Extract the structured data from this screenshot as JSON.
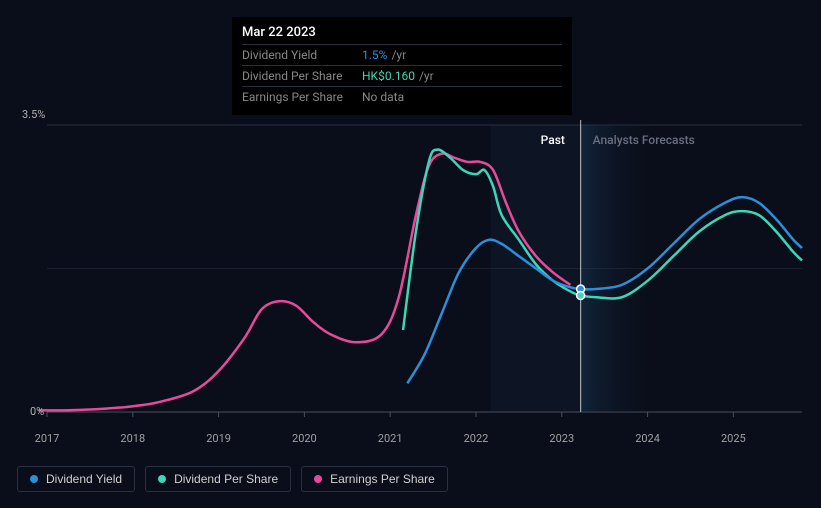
{
  "tooltip": {
    "date": "Mar 22 2023",
    "rows": [
      {
        "label": "Dividend Yield",
        "value": "1.5%",
        "suffix": "/yr",
        "color": "#2d8fd6"
      },
      {
        "label": "Dividend Per Share",
        "value": "HK$0.160",
        "suffix": "/yr",
        "color": "#3dd6b8"
      },
      {
        "label": "Earnings Per Share",
        "value": "No data",
        "suffix": "",
        "color": "#888888"
      }
    ]
  },
  "chart": {
    "type": "line",
    "background_color": "#0a0e1a",
    "axis_font_size": 11,
    "y": {
      "min": 0,
      "max": 3.5,
      "min_label": "0%",
      "max_label": "3.5%",
      "gridlines": [
        0,
        1.75
      ]
    },
    "x": {
      "min": 2017,
      "max": 2025.8,
      "ticks": [
        2017,
        2018,
        2019,
        2020,
        2021,
        2022,
        2023,
        2024,
        2025
      ],
      "labels": [
        "2017",
        "2018",
        "2019",
        "2020",
        "2021",
        "2022",
        "2023",
        "2024",
        "2025"
      ]
    },
    "past_forecast_split": 2023.22,
    "region_labels": {
      "past": {
        "text": "Past",
        "color": "#ffffff"
      },
      "forecast": {
        "text": "Analysts Forecasts",
        "color": "#6a7080"
      }
    },
    "forecast_gradient": {
      "from": "#1a3a5a",
      "to": "#0a0e1a",
      "opacity": 0.5
    },
    "cursor": {
      "x": 2023.22,
      "dots": [
        {
          "series": "dividend_yield",
          "y": 1.5,
          "color": "#2d8fd6"
        },
        {
          "series": "dividend_per_share",
          "y": 1.42,
          "color": "#3dd6b8"
        }
      ]
    },
    "series": [
      {
        "id": "earnings_per_share",
        "label": "Earnings Per Share",
        "color": "#e84a9a",
        "stroke_width": 2.5,
        "data": [
          [
            2016.9,
            0.02
          ],
          [
            2017.2,
            0.02
          ],
          [
            2017.5,
            0.03
          ],
          [
            2017.8,
            0.05
          ],
          [
            2018.0,
            0.07
          ],
          [
            2018.3,
            0.12
          ],
          [
            2018.7,
            0.25
          ],
          [
            2019.0,
            0.5
          ],
          [
            2019.3,
            0.9
          ],
          [
            2019.5,
            1.25
          ],
          [
            2019.7,
            1.35
          ],
          [
            2019.9,
            1.3
          ],
          [
            2020.1,
            1.1
          ],
          [
            2020.3,
            0.95
          ],
          [
            2020.6,
            0.85
          ],
          [
            2020.9,
            0.95
          ],
          [
            2021.1,
            1.4
          ],
          [
            2021.3,
            2.4
          ],
          [
            2021.45,
            3.0
          ],
          [
            2021.6,
            3.15
          ],
          [
            2021.75,
            3.1
          ],
          [
            2021.9,
            3.05
          ],
          [
            2022.05,
            3.05
          ],
          [
            2022.2,
            2.95
          ],
          [
            2022.35,
            2.55
          ],
          [
            2022.5,
            2.2
          ],
          [
            2022.7,
            1.9
          ],
          [
            2022.9,
            1.7
          ],
          [
            2023.1,
            1.55
          ]
        ]
      },
      {
        "id": "dividend_per_share",
        "label": "Dividend Per Share",
        "color": "#3dd6b8",
        "stroke_width": 2.5,
        "data": [
          [
            2021.15,
            1.0
          ],
          [
            2021.3,
            2.2
          ],
          [
            2021.45,
            3.05
          ],
          [
            2021.55,
            3.2
          ],
          [
            2021.7,
            3.1
          ],
          [
            2021.85,
            2.95
          ],
          [
            2022.0,
            2.9
          ],
          [
            2022.1,
            2.95
          ],
          [
            2022.2,
            2.75
          ],
          [
            2022.3,
            2.4
          ],
          [
            2022.5,
            2.1
          ],
          [
            2022.7,
            1.8
          ],
          [
            2022.9,
            1.6
          ],
          [
            2023.1,
            1.47
          ],
          [
            2023.22,
            1.42
          ],
          [
            2023.4,
            1.4
          ],
          [
            2023.7,
            1.4
          ],
          [
            2024.0,
            1.6
          ],
          [
            2024.3,
            1.9
          ],
          [
            2024.6,
            2.2
          ],
          [
            2024.9,
            2.4
          ],
          [
            2025.1,
            2.45
          ],
          [
            2025.3,
            2.4
          ],
          [
            2025.5,
            2.2
          ],
          [
            2025.7,
            1.95
          ],
          [
            2025.8,
            1.85
          ]
        ]
      },
      {
        "id": "dividend_yield",
        "label": "Dividend Yield",
        "color": "#2d8fd6",
        "stroke_width": 2.5,
        "data": [
          [
            2021.2,
            0.35
          ],
          [
            2021.4,
            0.7
          ],
          [
            2021.6,
            1.2
          ],
          [
            2021.8,
            1.7
          ],
          [
            2022.0,
            2.0
          ],
          [
            2022.15,
            2.1
          ],
          [
            2022.3,
            2.05
          ],
          [
            2022.5,
            1.9
          ],
          [
            2022.7,
            1.75
          ],
          [
            2022.9,
            1.6
          ],
          [
            2023.1,
            1.52
          ],
          [
            2023.22,
            1.5
          ],
          [
            2023.4,
            1.5
          ],
          [
            2023.7,
            1.55
          ],
          [
            2024.0,
            1.75
          ],
          [
            2024.3,
            2.05
          ],
          [
            2024.6,
            2.35
          ],
          [
            2024.9,
            2.55
          ],
          [
            2025.1,
            2.62
          ],
          [
            2025.3,
            2.55
          ],
          [
            2025.5,
            2.35
          ],
          [
            2025.7,
            2.1
          ],
          [
            2025.8,
            2.0
          ]
        ]
      }
    ],
    "legend": [
      {
        "id": "dividend_yield",
        "label": "Dividend Yield",
        "color": "#2d8fd6"
      },
      {
        "id": "dividend_per_share",
        "label": "Dividend Per Share",
        "color": "#3dd6b8"
      },
      {
        "id": "earnings_per_share",
        "label": "Earnings Per Share",
        "color": "#e84a9a"
      }
    ]
  }
}
